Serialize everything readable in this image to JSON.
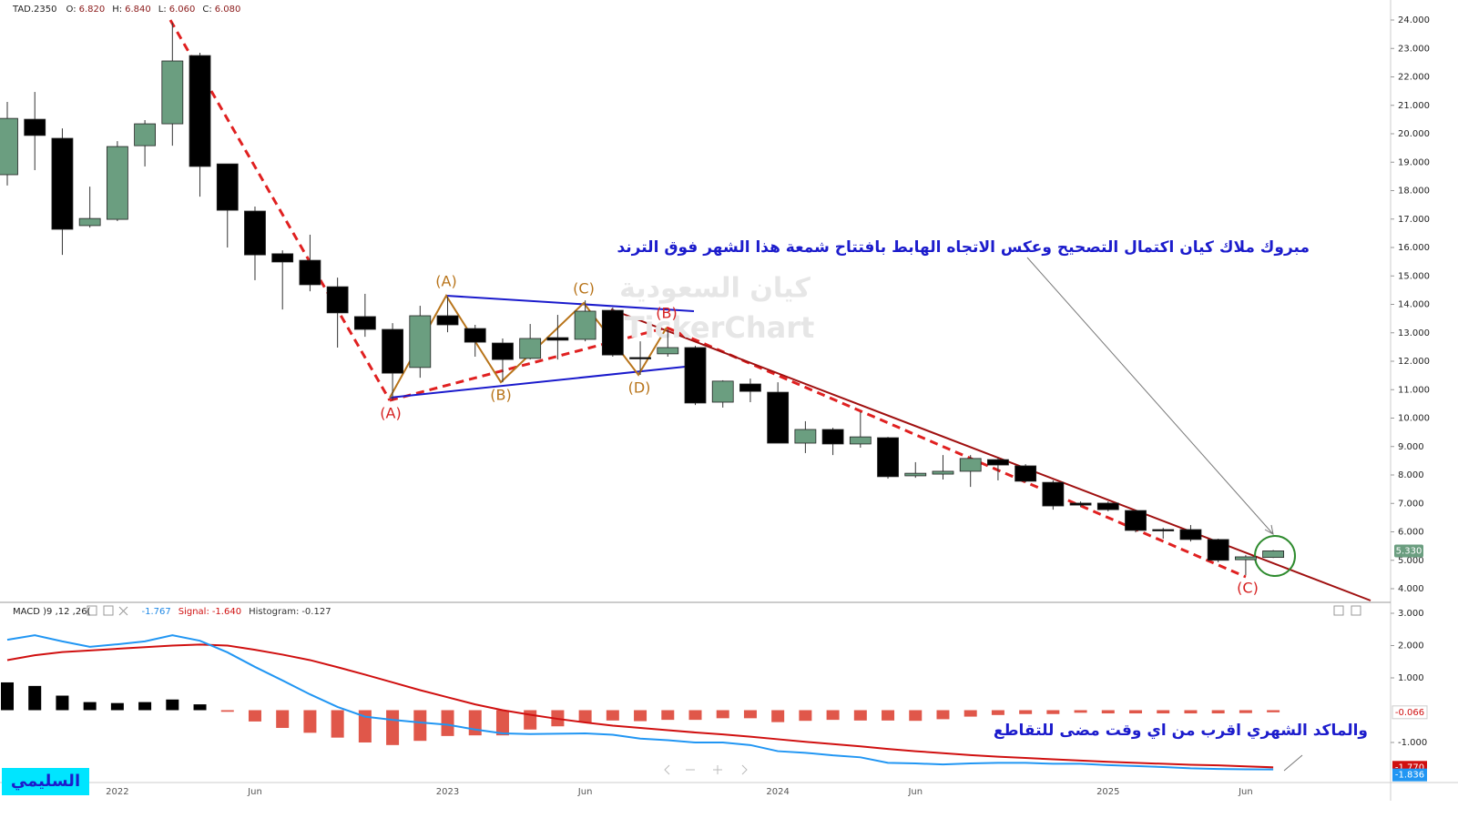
{
  "chart_data": [
    {
      "type": "candlestick",
      "symbol": "TAD.2350",
      "ohlc_readout": [
        {
          "name": "O:",
          "value": 6.82,
          "label": "6.820"
        },
        {
          "name": "H:",
          "value": 6.84,
          "label": "6.840"
        },
        {
          "name": "L:",
          "value": 6.06,
          "label": "6.060"
        },
        {
          "name": "C:",
          "value": 6.08,
          "label": "6.080"
        }
      ],
      "categories": [
        null,
        null,
        null,
        null,
        "2022",
        null,
        null,
        null,
        null,
        "Jun",
        null,
        null,
        null,
        null,
        null,
        null,
        "2023",
        null,
        null,
        null,
        null,
        "Jun",
        null,
        null,
        null,
        null,
        null,
        null,
        "2024",
        null,
        null,
        null,
        null,
        "Jun",
        null,
        null,
        null,
        null,
        null,
        null,
        "2025",
        null,
        null,
        null,
        null,
        "Jun",
        null
      ],
      "open": [
        18.56,
        20.51,
        19.84,
        16.77,
        16.99,
        19.58,
        20.35,
        22.75,
        18.94,
        17.28,
        15.78,
        15.55,
        14.62,
        13.57,
        13.12,
        11.78,
        13.6,
        13.15,
        12.64,
        12.1,
        12.83,
        12.77,
        13.79,
        12.13,
        12.26,
        12.48,
        10.56,
        11.2,
        10.91,
        9.12,
        9.6,
        9.09,
        9.31,
        7.97,
        8.03,
        8.13,
        8.54,
        8.32,
        7.74,
        7.01,
        7.01,
        6.75,
        6.08,
        6.08,
        5.73,
        5.02,
        5.1
      ],
      "high": [
        21.12,
        21.47,
        20.19,
        18.14,
        19.74,
        20.48,
        23.9,
        22.85,
        18.94,
        17.44,
        15.9,
        16.45,
        14.94,
        14.37,
        13.34,
        13.95,
        14.27,
        13.28,
        12.8,
        13.31,
        13.63,
        14.14,
        13.89,
        12.7,
        13.12,
        12.54,
        11.33,
        11.39,
        11.26,
        9.89,
        9.66,
        10.21,
        9.34,
        8.45,
        8.7,
        8.7,
        8.61,
        8.38,
        7.81,
        7.07,
        7.07,
        6.78,
        6.14,
        6.24,
        5.76,
        5.18,
        5.36
      ],
      "low": [
        18.18,
        18.72,
        15.74,
        16.7,
        16.93,
        18.85,
        19.58,
        17.79,
        16.0,
        14.85,
        13.82,
        14.46,
        12.48,
        12.86,
        10.62,
        11.42,
        13.02,
        12.16,
        11.26,
        12.06,
        12.06,
        12.7,
        12.16,
        11.52,
        12.16,
        10.46,
        10.37,
        10.56,
        9.12,
        8.77,
        8.7,
        8.96,
        7.87,
        7.9,
        7.84,
        7.58,
        7.81,
        7.74,
        6.78,
        6.88,
        6.72,
        5.98,
        5.76,
        5.66,
        4.93,
        4.48,
        5.08
      ],
      "close": [
        20.54,
        19.94,
        16.64,
        17.02,
        19.55,
        20.35,
        22.56,
        18.85,
        17.31,
        15.74,
        15.49,
        14.69,
        13.7,
        13.12,
        11.58,
        13.6,
        13.28,
        12.67,
        12.06,
        12.8,
        12.74,
        13.76,
        12.22,
        12.1,
        12.48,
        10.53,
        11.3,
        10.94,
        9.12,
        9.6,
        9.09,
        9.34,
        7.94,
        8.06,
        8.13,
        8.58,
        8.35,
        7.78,
        6.91,
        6.94,
        6.78,
        6.05,
        6.05,
        5.73,
        5.0,
        5.12,
        5.33
      ],
      "up_color": "#6b9e80",
      "down_color": "#000000",
      "ylim": [
        3.52,
        24.704
      ],
      "yticks": [
        {
          "value": 4,
          "label": "4.000"
        },
        {
          "value": 5,
          "label": "5.000"
        },
        {
          "value": 6,
          "label": "6.000"
        },
        {
          "value": 7,
          "label": "7.000"
        },
        {
          "value": 8,
          "label": "8.000"
        },
        {
          "value": 9,
          "label": "9.000"
        },
        {
          "value": 10,
          "label": "10.000"
        },
        {
          "value": 11,
          "label": "11.000"
        },
        {
          "value": 12,
          "label": "12.000"
        },
        {
          "value": 13,
          "label": "13.000"
        },
        {
          "value": 14,
          "label": "14.000"
        },
        {
          "value": 15,
          "label": "15.000"
        },
        {
          "value": 16,
          "label": "16.000"
        },
        {
          "value": 17,
          "label": "17.000"
        },
        {
          "value": 18,
          "label": "18.000"
        },
        {
          "value": 19,
          "label": "19.000"
        },
        {
          "value": 20,
          "label": "20.000"
        },
        {
          "value": 21,
          "label": "21.000"
        },
        {
          "value": 22,
          "label": "22.000"
        },
        {
          "value": 23,
          "label": "23.000"
        },
        {
          "value": 24,
          "label": "24.000"
        }
      ],
      "last_value": {
        "value": 5.33,
        "label": "5.330",
        "color": "#6b9e80"
      },
      "watermark": [
        "كيان السعودية",
        "TickerChart"
      ],
      "annotations": [
        "مبروك ملاك كيان اكتمال التصحيح وعكس الاتجاه الهابط بافتتاح شمعة هذا الشهر فوق الترند",
        "والماكد الشهري اقرب من اي وقت مضى للتقاطع"
      ],
      "annotation_color": "#1c1ccc",
      "wave_labels": [
        {
          "text": "(A)",
          "color": "#d62020"
        },
        {
          "text": "(A)",
          "color": "#b8741a"
        },
        {
          "text": "(B)",
          "color": "#b8741a"
        },
        {
          "text": "(C)",
          "color": "#b8741a"
        },
        {
          "text": "(D)",
          "color": "#b8741a"
        },
        {
          "text": "(B)",
          "color": "#d62020"
        },
        {
          "text": "(C)",
          "color": "#d62020"
        }
      ],
      "badge": "السليمي"
    },
    {
      "type": "macd",
      "indicator": "MACD )9 ,12 ,26(",
      "readout": [
        {
          "value": -1.767,
          "label": "-1.767",
          "color": "#1e88e5"
        },
        {
          "name": "Signal:",
          "value": -1.64,
          "label": "-1.640",
          "color": "#d01010"
        },
        {
          "name": "Histogram:",
          "value": -0.127,
          "label": "-0.127",
          "color": "#333333"
        }
      ],
      "macd": {
        "color": "#2196f3",
        "values": [
          2.18,
          2.32,
          2.13,
          1.96,
          2.04,
          2.13,
          2.32,
          2.15,
          1.79,
          1.34,
          0.92,
          0.49,
          0.1,
          -0.2,
          -0.3,
          -0.38,
          -0.45,
          -0.6,
          -0.72,
          -0.74,
          -0.73,
          -0.72,
          -0.76,
          -0.88,
          -0.93,
          -1.0,
          -1.0,
          -1.08,
          -1.27,
          -1.32,
          -1.4,
          -1.46,
          -1.63,
          -1.65,
          -1.68,
          -1.65,
          -1.63,
          -1.63,
          -1.66,
          -1.66,
          -1.7,
          -1.73,
          -1.76,
          -1.8,
          -1.82,
          -1.83,
          -1.836
        ]
      },
      "signal": {
        "color": "#d01010",
        "values": [
          1.55,
          1.7,
          1.8,
          1.85,
          1.9,
          1.95,
          2.0,
          2.03,
          2.0,
          1.87,
          1.72,
          1.55,
          1.33,
          1.1,
          0.86,
          0.62,
          0.4,
          0.18,
          0.0,
          -0.14,
          -0.27,
          -0.38,
          -0.48,
          -0.55,
          -0.62,
          -0.69,
          -0.75,
          -0.82,
          -0.9,
          -0.98,
          -1.05,
          -1.12,
          -1.2,
          -1.27,
          -1.33,
          -1.39,
          -1.44,
          -1.48,
          -1.52,
          -1.56,
          -1.6,
          -1.63,
          -1.66,
          -1.69,
          -1.71,
          -1.74,
          -1.77
        ]
      },
      "histogram": {
        "color": "#000000",
        "negative_color": "#e0574a",
        "values": [
          0.86,
          0.75,
          0.45,
          0.25,
          0.22,
          0.25,
          0.33,
          0.18,
          -0.05,
          -0.35,
          -0.55,
          -0.7,
          -0.85,
          -1.0,
          -1.08,
          -0.95,
          -0.8,
          -0.78,
          -0.78,
          -0.6,
          -0.5,
          -0.38,
          -0.32,
          -0.34,
          -0.3,
          -0.3,
          -0.25,
          -0.25,
          -0.37,
          -0.33,
          -0.3,
          -0.32,
          -0.32,
          -0.33,
          -0.28,
          -0.2,
          -0.15,
          -0.12,
          -0.12,
          -0.08,
          -0.1,
          -0.1,
          -0.1,
          -0.1,
          -0.1,
          -0.09,
          -0.066
        ]
      },
      "ylim": [
        -2.24,
        3.338
      ],
      "yticks": [
        {
          "value": -1,
          "label": "-1.000"
        },
        {
          "value": 1,
          "label": "1.000"
        },
        {
          "value": 2,
          "label": "2.000"
        },
        {
          "value": 3,
          "label": "3.000"
        }
      ],
      "last_values": [
        {
          "value": -0.066,
          "label": "-0.066",
          "color": "#ffffff",
          "text_color": "#d01010"
        },
        {
          "value": -1.77,
          "label": "-1.770",
          "color": "#d01010",
          "text_color": "#ffffff"
        },
        {
          "value": -1.836,
          "label": "-1.836",
          "color": "#2196f3",
          "text_color": "#ffffff"
        }
      ]
    }
  ]
}
